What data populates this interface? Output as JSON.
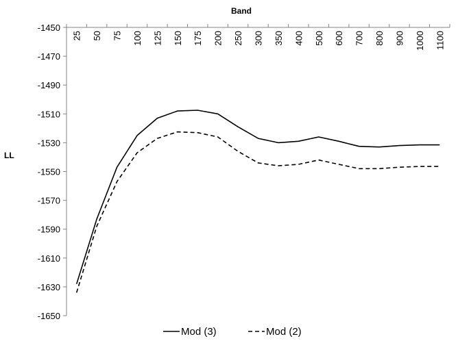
{
  "chart_data": {
    "type": "line",
    "xlabel": "Band",
    "ylabel": "LL",
    "x_axis_position": "top",
    "categories": [
      "25",
      "50",
      "75",
      "100",
      "125",
      "150",
      "175",
      "200",
      "250",
      "300",
      "350",
      "400",
      "500",
      "600",
      "700",
      "800",
      "900",
      "1000",
      "1100"
    ],
    "ylim": [
      -1650,
      -1450
    ],
    "yticks": [
      -1450,
      -1470,
      -1490,
      -1510,
      -1530,
      -1550,
      -1570,
      -1590,
      -1610,
      -1630,
      -1650
    ],
    "grid": false,
    "legend_position": "bottom",
    "series": [
      {
        "name": "Mod (3)",
        "style": "solid",
        "color": "#000000",
        "values": [
          -1628,
          -1583,
          -1547,
          -1525,
          -1513,
          -1508,
          -1507.5,
          -1510,
          -1519,
          -1527,
          -1530,
          -1529,
          -1526,
          -1529,
          -1532.5,
          -1533,
          -1532,
          -1531.5,
          -1531.5
        ]
      },
      {
        "name": "Mod (2)",
        "style": "dashed",
        "color": "#000000",
        "values": [
          -1634,
          -1588,
          -1557,
          -1537,
          -1527,
          -1522.5,
          -1523,
          -1526,
          -1536,
          -1544,
          -1546,
          -1545,
          -1542,
          -1545,
          -1548,
          -1548,
          -1547,
          -1546.5,
          -1546.5
        ]
      }
    ]
  }
}
